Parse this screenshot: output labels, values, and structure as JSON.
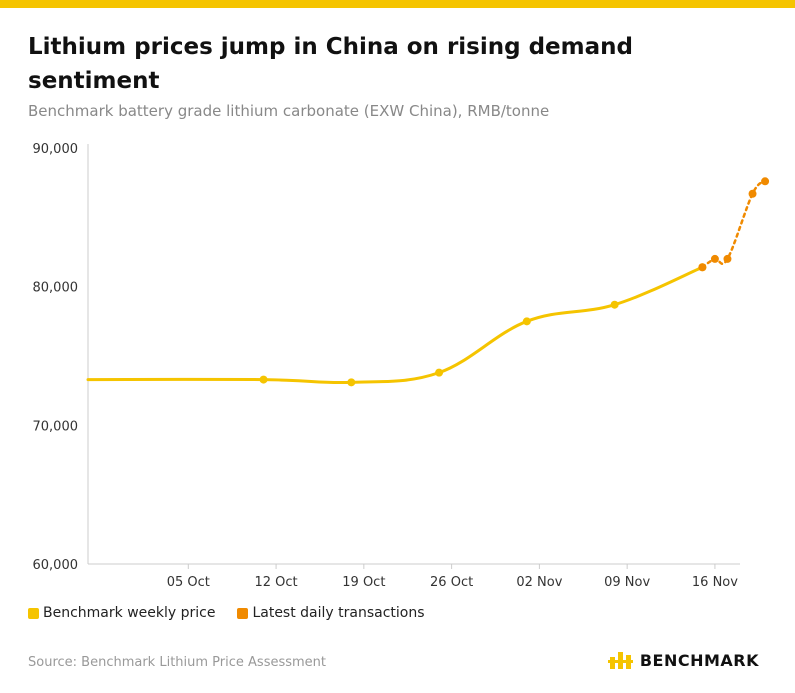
{
  "header": {
    "title": "Lithium prices jump in China on rising demand sentiment",
    "subtitle": "Benchmark battery grade lithium carbonate (EXW China), RMB/tonne"
  },
  "legend": {
    "weekly_label": "Benchmark weekly price",
    "daily_label": "Latest daily transactions"
  },
  "footer": {
    "source": "Source: Benchmark Lithium Price Assessment",
    "brand": "BENCHMARK"
  },
  "colors": {
    "accent_bar": "#F5C400",
    "weekly": "#F5C400",
    "daily": "#F08A00",
    "axis": "#cccccc"
  },
  "chart_data": {
    "type": "line",
    "title": "Lithium prices jump in China on rising demand sentiment",
    "subtitle": "Benchmark battery grade lithium carbonate (EXW China), RMB/tonne",
    "xlabel": "",
    "ylabel": "",
    "ylim": [
      60000,
      90000
    ],
    "yticks": [
      60000,
      70000,
      80000,
      90000
    ],
    "ytick_labels": [
      "60,000",
      "70,000",
      "80,000",
      "90,000"
    ],
    "xdomain_days": [
      -5,
      47
    ],
    "xticks_days": [
      3,
      10,
      17,
      24,
      31,
      38,
      45
    ],
    "xtick_labels": [
      "05 Oct",
      "12 Oct",
      "19 Oct",
      "26 Oct",
      "02 Nov",
      "09 Nov",
      "16 Nov"
    ],
    "series": [
      {
        "name": "Benchmark weekly price",
        "style": "solid",
        "x_days": [
          -5,
          9,
          16,
          23,
          30,
          37,
          44
        ],
        "values": [
          73300,
          73300,
          73100,
          73800,
          77500,
          78700,
          81400
        ],
        "markers": [
          false,
          true,
          true,
          true,
          true,
          true,
          true
        ]
      },
      {
        "name": "Latest daily transactions",
        "style": "dotted",
        "x_days": [
          44,
          45,
          46,
          48,
          49
        ],
        "values": [
          81400,
          82000,
          82000,
          86700,
          87600
        ],
        "markers": [
          true,
          true,
          true,
          true,
          true
        ]
      }
    ],
    "grid": false,
    "legend_position": "bottom-left"
  }
}
